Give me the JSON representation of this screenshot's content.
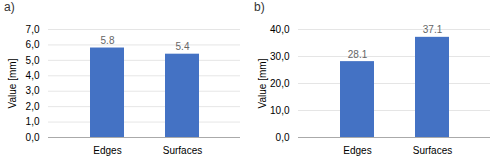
{
  "chart_data": [
    {
      "type": "bar",
      "title": "a)",
      "ylabel": "Value [mm]",
      "categories": [
        "Edges",
        "Surfaces"
      ],
      "values": [
        5.8,
        5.4
      ],
      "color": "#4472C4",
      "ylim": [
        0,
        7.0
      ],
      "yticks": [
        {
          "value": 0.0,
          "label": "0,0"
        },
        {
          "value": 1.0,
          "label": "1,0"
        },
        {
          "value": 2.0,
          "label": "2,0"
        },
        {
          "value": 3.0,
          "label": "3,0"
        },
        {
          "value": 4.0,
          "label": "4,0"
        },
        {
          "value": 5.0,
          "label": "5,0"
        },
        {
          "value": 6.0,
          "label": "6,0"
        },
        {
          "value": 7.0,
          "label": "7,0"
        }
      ],
      "grid": true,
      "data_labels": true
    },
    {
      "type": "bar",
      "title": "b)",
      "ylabel": "Value [mm]",
      "categories": [
        "Edges",
        "Surfaces"
      ],
      "values": [
        28.1,
        37.1
      ],
      "color": "#4472C4",
      "ylim": [
        0,
        40.0
      ],
      "yticks": [
        {
          "value": 0.0,
          "label": "0,0"
        },
        {
          "value": 10.0,
          "label": "10,0"
        },
        {
          "value": 20.0,
          "label": "20,0"
        },
        {
          "value": 30.0,
          "label": "30,0"
        },
        {
          "value": 40.0,
          "label": "40,0"
        }
      ],
      "grid": true,
      "data_labels": true
    }
  ]
}
